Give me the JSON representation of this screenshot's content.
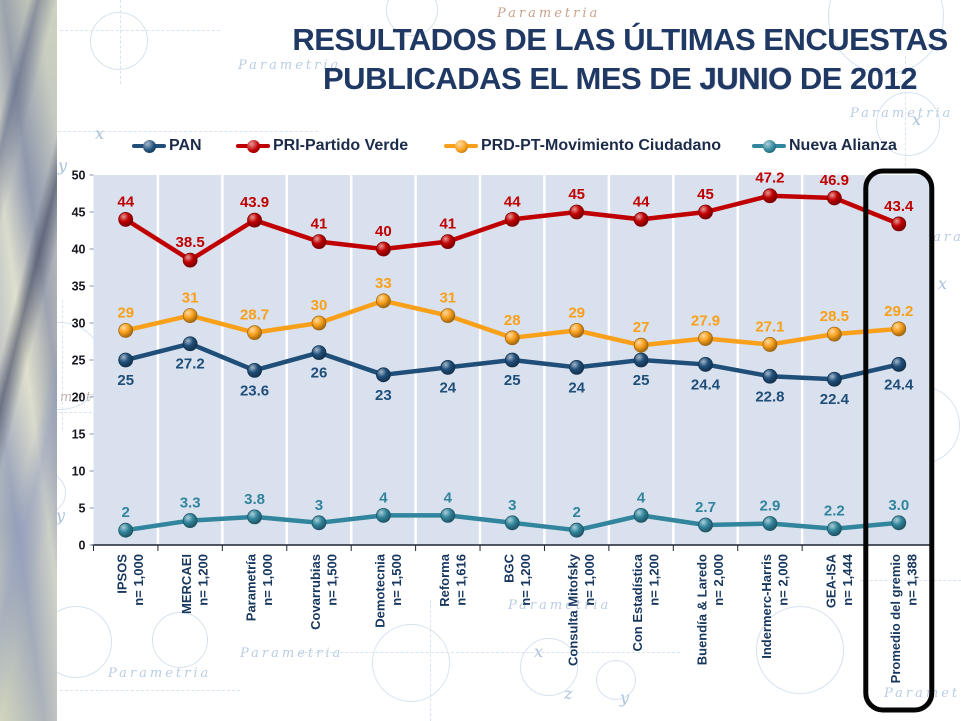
{
  "title": {
    "line1": "RESULTADOS DE LAS ÚLTIMAS ENCUESTAS",
    "line2_pre": "PUBLICADAS EL MES DE ",
    "line2_bold": "JUNIO",
    "line2_post": " DE 2012"
  },
  "watermark": "Parametria",
  "sketch_letters": {
    "x": "x",
    "y": "y",
    "z": "z"
  },
  "colors": {
    "title": "#1f3864",
    "plot_background": "#d9e0ee",
    "separator": "#ffffff",
    "highlight_box": "#050505",
    "axis": "#1e2430",
    "category_label": "#17375e"
  },
  "chart_data": {
    "type": "line",
    "title": "",
    "xlabel": "",
    "ylabel": "",
    "ylim": [
      0,
      50
    ],
    "yticks": [
      0,
      5,
      10,
      15,
      20,
      25,
      30,
      35,
      40,
      45,
      50
    ],
    "grid": "white vertical separators between categories",
    "legend_position": "top",
    "highlighted_category": "Promedio del gremio",
    "categories": [
      {
        "label": "IPSOS",
        "n": "n= 1,000"
      },
      {
        "label": "MERCAEI",
        "n": "n= 1,200"
      },
      {
        "label": "Parametría",
        "n": "n= 1,000"
      },
      {
        "label": "Covarrubias",
        "n": "n= 1,500"
      },
      {
        "label": "Demotecnia",
        "n": "n= 1,500"
      },
      {
        "label": "Reforma",
        "n": "n= 1,616"
      },
      {
        "label": "BGC",
        "n": "n= 1,200"
      },
      {
        "label": "Consulta Mitofsky",
        "n": "n= 1,000"
      },
      {
        "label": "Con Estadística",
        "n": "n= 1,200"
      },
      {
        "label": "Buendía & Laredo",
        "n": "n= 2,000"
      },
      {
        "label": "Indermerc-Harris",
        "n": "n= 2,000"
      },
      {
        "label": "GEA-ISA",
        "n": "n= 1,444"
      },
      {
        "label": "Promedio del gremio",
        "n": "n= 1,388"
      }
    ],
    "series": [
      {
        "name": "PAN",
        "color": "#1f4e79",
        "label_position": "below",
        "values": [
          25,
          27.2,
          23.6,
          26,
          23,
          24,
          25,
          24,
          25,
          24.4,
          22.8,
          22.4,
          24.4
        ],
        "labels": [
          "25",
          "27.2",
          "23.6",
          "26",
          "23",
          "24",
          "25",
          "24",
          "25",
          "24.4",
          "22.8",
          "22.4",
          "24.4"
        ]
      },
      {
        "name": "PRI-Partido Verde",
        "color": "#c00000",
        "label_position": "above",
        "values": [
          44,
          38.5,
          43.9,
          41,
          40,
          41,
          44,
          45,
          44,
          45,
          47.2,
          46.9,
          43.4
        ],
        "labels": [
          "44",
          "38.5",
          "43.9",
          "41",
          "40",
          "41",
          "44",
          "45",
          "44",
          "45",
          "47.2",
          "46.9",
          "43.4"
        ]
      },
      {
        "name": "PRD-PT-Movimiento Ciudadano",
        "color": "#f9a01b",
        "label_position": "above",
        "values": [
          29,
          31,
          28.7,
          30,
          33,
          31,
          28,
          29,
          27,
          27.9,
          27.1,
          28.5,
          29.2
        ],
        "labels": [
          "29",
          "31",
          "28.7",
          "30",
          "33",
          "31",
          "28",
          "29",
          "27",
          "27.9",
          "27.1",
          "28.5",
          "29.2"
        ]
      },
      {
        "name": "Nueva Alianza",
        "color": "#31859c",
        "label_position": "above",
        "values": [
          2,
          3.3,
          3.8,
          3,
          4,
          4,
          3,
          2,
          4,
          2.7,
          2.9,
          2.2,
          3.0
        ],
        "labels": [
          "2",
          "3.3",
          "3.8",
          "3",
          "4",
          "4",
          "3",
          "2",
          "4",
          "2.7",
          "2.9",
          "2.2",
          "3.0"
        ]
      }
    ]
  }
}
